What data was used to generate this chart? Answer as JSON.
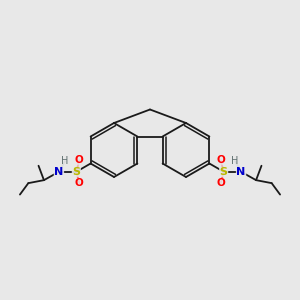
{
  "bg_color": "#e8e8e8",
  "bond_color": "#1a1a1a",
  "S_color": "#b8b800",
  "O_color": "#ff0000",
  "N_color": "#0000cc",
  "H_color": "#607070",
  "lw": 1.3,
  "figsize": [
    3.0,
    3.0
  ],
  "dpi": 100,
  "xlim": [
    0,
    10
  ],
  "ylim": [
    2.5,
    7.5
  ]
}
